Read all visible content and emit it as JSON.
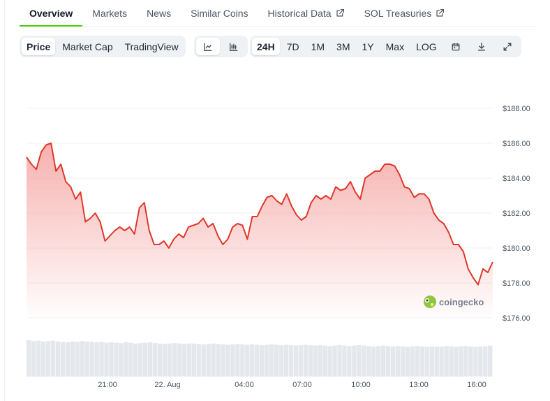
{
  "tabs": [
    {
      "label": "Overview",
      "active": true,
      "external": false
    },
    {
      "label": "Markets",
      "active": false,
      "external": false
    },
    {
      "label": "News",
      "active": false,
      "external": false
    },
    {
      "label": "Similar Coins",
      "active": false,
      "external": false
    },
    {
      "label": "Historical Data",
      "active": false,
      "external": true
    },
    {
      "label": "SOL Treasuries",
      "active": false,
      "external": true
    }
  ],
  "toolbar": {
    "view_buttons": [
      {
        "label": "Price",
        "active": true
      },
      {
        "label": "Market Cap",
        "active": false
      },
      {
        "label": "TradingView",
        "active": false
      }
    ],
    "chart_type_buttons": [
      {
        "icon": "line-chart-icon",
        "active": true
      },
      {
        "icon": "candlestick-chart-icon",
        "active": false
      }
    ],
    "range_buttons": [
      {
        "label": "24H",
        "active": true
      },
      {
        "label": "7D",
        "active": false
      },
      {
        "label": "1M",
        "active": false
      },
      {
        "label": "3M",
        "active": false
      },
      {
        "label": "1Y",
        "active": false
      },
      {
        "label": "Max",
        "active": false
      },
      {
        "label": "LOG",
        "active": false
      }
    ],
    "tool_icons": [
      "calendar-icon",
      "download-icon",
      "expand-icon"
    ]
  },
  "watermark": {
    "text": "coingecko",
    "icon": "coingecko-logo-icon"
  },
  "colors": {
    "line": "#e0382b",
    "fill": "#f4a3a0",
    "volume": "#e4e7ec",
    "grid": "#eef0f3",
    "accent": "#4bcc00"
  },
  "chart_data": {
    "type": "line",
    "series": [
      {
        "y": [
          185.2,
          184.8,
          184.5,
          185.5,
          185.9,
          186.0,
          184.4,
          184.8,
          183.8,
          183.5,
          182.8,
          183.2,
          181.5,
          181.7,
          182.0,
          181.5,
          180.4,
          180.7,
          181.0,
          181.2,
          181.0,
          181.2,
          180.8,
          182.3,
          182.6,
          181.0,
          180.2,
          180.2,
          180.4,
          180.0,
          180.5,
          180.8,
          180.6,
          181.2,
          181.3,
          181.4,
          181.7,
          181.2,
          181.4,
          180.7,
          180.2,
          180.5,
          181.2,
          181.4,
          181.3,
          180.5,
          181.8,
          181.8,
          182.4,
          182.9,
          183.0,
          182.7,
          182.5,
          183.1,
          182.4,
          181.9,
          181.6,
          181.8,
          182.6,
          183.0,
          182.8,
          183.0,
          182.8,
          183.5,
          183.3,
          183.4,
          183.8,
          183.2,
          182.8,
          184.0,
          184.2,
          184.4,
          184.4,
          184.8,
          184.8,
          184.7,
          184.2,
          183.5,
          183.4,
          182.9,
          183.1,
          183.1,
          182.8,
          182.0,
          181.6,
          181.4,
          180.9,
          180.2,
          180.2,
          179.8,
          178.8,
          178.3,
          177.9,
          178.8,
          178.6,
          179.2
        ],
        "volume": [
          0.88,
          0.86,
          0.87,
          0.85,
          0.86,
          0.87,
          0.85,
          0.84,
          0.83,
          0.85,
          0.84,
          0.86,
          0.85,
          0.84,
          0.83,
          0.84,
          0.82,
          0.83,
          0.82,
          0.81,
          0.83,
          0.82,
          0.8,
          0.81,
          0.82,
          0.83,
          0.81,
          0.8,
          0.79,
          0.8,
          0.81,
          0.8,
          0.79,
          0.8,
          0.8,
          0.79,
          0.78,
          0.79,
          0.8,
          0.79,
          0.78,
          0.77,
          0.78,
          0.79,
          0.78,
          0.77,
          0.78,
          0.77,
          0.76,
          0.77,
          0.78,
          0.77,
          0.76,
          0.77,
          0.76,
          0.75,
          0.76,
          0.77,
          0.76,
          0.75,
          0.76,
          0.75,
          0.74,
          0.75,
          0.76,
          0.75,
          0.74,
          0.75,
          0.76,
          0.75,
          0.74,
          0.73,
          0.74,
          0.75,
          0.74,
          0.73,
          0.74,
          0.73,
          0.72,
          0.73,
          0.74,
          0.73,
          0.72,
          0.73,
          0.72,
          0.73,
          0.74,
          0.73,
          0.72,
          0.73,
          0.74,
          0.73,
          0.72,
          0.73,
          0.74,
          0.75
        ]
      }
    ],
    "ylim": [
      176.0,
      189.0
    ],
    "y_ticks": [
      "$188.00",
      "$186.00",
      "$184.00",
      "$182.00",
      "$180.00",
      "$178.00",
      "$176.00"
    ],
    "x_ticks": [
      "21:00",
      "22. Aug",
      "04:00",
      "07:00",
      "10:00",
      "13:00",
      "16:00"
    ],
    "title": "",
    "xlabel": "",
    "ylabel": "",
    "grid": true
  }
}
